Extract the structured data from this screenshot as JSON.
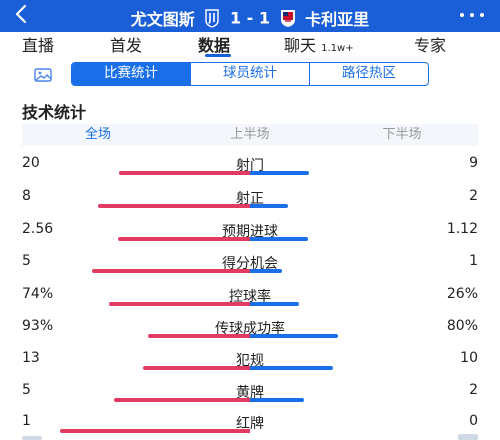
{
  "header": {
    "back_icon": "back-arrow-icon",
    "home_team": "尤文图斯",
    "score": "1 - 1",
    "away_team": "卡利亚里",
    "more_icon": "more-dots-icon",
    "bg_color": "#1a5fd8"
  },
  "nav": {
    "tabs": [
      "直播",
      "首发",
      "数据",
      "聊天",
      "专家"
    ],
    "chat_count": "1.1w+",
    "active": "数据"
  },
  "subtabs": {
    "items": [
      "比赛统计",
      "球员统计",
      "路径热区"
    ],
    "active": "比赛统计"
  },
  "section_title": "技术统计",
  "periods": {
    "items": [
      "全场",
      "上半场",
      "下半场"
    ],
    "active": "全场"
  },
  "colors": {
    "home": "#e23b63",
    "away": "#1a6fe8"
  },
  "stats": [
    {
      "label": "射门",
      "home": "20",
      "away": "9"
    },
    {
      "label": "射正",
      "home": "8",
      "away": "2"
    },
    {
      "label": "预期进球",
      "home": "2.56",
      "away": "1.12"
    },
    {
      "label": "得分机会",
      "home": "5",
      "away": "1"
    },
    {
      "label": "控球率",
      "home": "74%",
      "away": "26%"
    },
    {
      "label": "传球成功率",
      "home": "93%",
      "away": "80%"
    },
    {
      "label": "犯规",
      "home": "13",
      "away": "10"
    },
    {
      "label": "黄牌",
      "home": "5",
      "away": "2"
    },
    {
      "label": "红牌",
      "home": "1",
      "away": "0"
    }
  ]
}
